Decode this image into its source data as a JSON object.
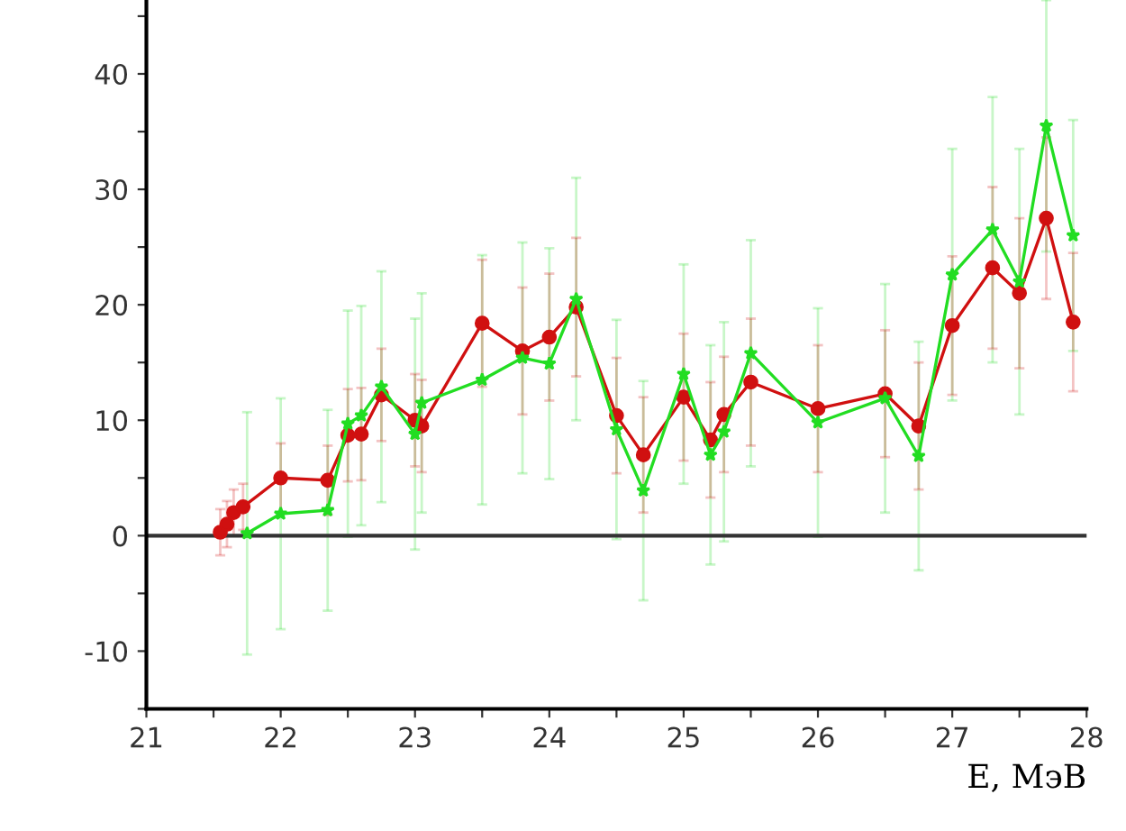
{
  "chart_data": {
    "type": "line",
    "xlabel": "E, МэВ",
    "xlim": [
      21,
      28
    ],
    "ylim": [
      -15,
      46.4
    ],
    "xticks": [
      21,
      {
        "value": 21.5,
        "label": null
      },
      22,
      {
        "value": 22.5,
        "label": null
      },
      23,
      {
        "value": 23.5,
        "label": null
      },
      24,
      {
        "value": 24.5,
        "label": null
      },
      25,
      {
        "value": 25.5,
        "label": null
      },
      26,
      {
        "value": 26.5,
        "label": null
      },
      27,
      {
        "value": 27.5,
        "label": null
      },
      28
    ],
    "yticks": [
      {
        "value": -15,
        "label": null
      },
      -10,
      {
        "value": -5,
        "label": null
      },
      0,
      {
        "value": 5,
        "label": null
      },
      10,
      {
        "value": 15,
        "label": null
      },
      20,
      {
        "value": 25,
        "label": null
      },
      30,
      {
        "value": 35,
        "label": null
      },
      40,
      {
        "value": 45,
        "label": null
      }
    ],
    "grid": false,
    "ref_lines": [
      {
        "axis": "y",
        "value": 0,
        "color": "#333333"
      }
    ],
    "series": [
      {
        "color": "#22dd22",
        "marker": "star",
        "x": [
          21.75,
          22.0,
          22.35,
          22.5,
          22.6,
          22.75,
          23.0,
          23.05,
          23.5,
          23.8,
          24.0,
          24.2,
          24.5,
          24.7,
          25.0,
          25.2,
          25.3,
          25.5,
          26.0,
          26.5,
          26.75,
          27.0,
          27.3,
          27.5,
          27.7,
          27.9
        ],
        "values": [
          0.2,
          1.9,
          2.2,
          9.7,
          10.4,
          12.9,
          8.8,
          11.5,
          13.5,
          15.4,
          14.9,
          20.5,
          9.2,
          3.9,
          14.0,
          7.0,
          9.0,
          15.8,
          9.8,
          11.9,
          6.9,
          22.6,
          26.5,
          22.0,
          35.5,
          26.0
        ],
        "errors": [
          10.5,
          10,
          8.7,
          9.8,
          9.5,
          10,
          10,
          9.5,
          10.8,
          10,
          10,
          10.5,
          9.5,
          9.5,
          9.5,
          9.5,
          9.5,
          9.8,
          9.9,
          9.9,
          9.9,
          10.9,
          11.5,
          11.5,
          10.9,
          10
        ]
      },
      {
        "color": "#d01010",
        "marker": "circle",
        "x": [
          21.55,
          21.6,
          21.65,
          21.72,
          22.0,
          22.35,
          22.5,
          22.6,
          22.75,
          23.0,
          23.05,
          23.5,
          23.8,
          24.0,
          24.2,
          24.5,
          24.7,
          25.0,
          25.2,
          25.3,
          25.5,
          26.0,
          26.5,
          26.75,
          27.0,
          27.3,
          27.5,
          27.7,
          27.9
        ],
        "values": [
          0.3,
          1.0,
          2.0,
          2.5,
          5.0,
          4.8,
          8.7,
          8.8,
          12.2,
          10.0,
          9.5,
          18.4,
          16.0,
          17.2,
          19.8,
          10.4,
          7.0,
          12.0,
          8.3,
          10.5,
          13.3,
          11.0,
          12.3,
          9.5,
          18.2,
          23.2,
          21.0,
          27.5,
          18.5
        ],
        "errors": [
          2,
          2,
          2,
          2,
          3,
          3,
          4,
          4,
          4,
          4,
          4,
          5.5,
          5.5,
          5.5,
          6,
          5,
          5,
          5.5,
          5,
          5,
          5.5,
          5.5,
          5.5,
          5.5,
          6,
          7,
          6.5,
          7,
          6
        ]
      }
    ]
  }
}
